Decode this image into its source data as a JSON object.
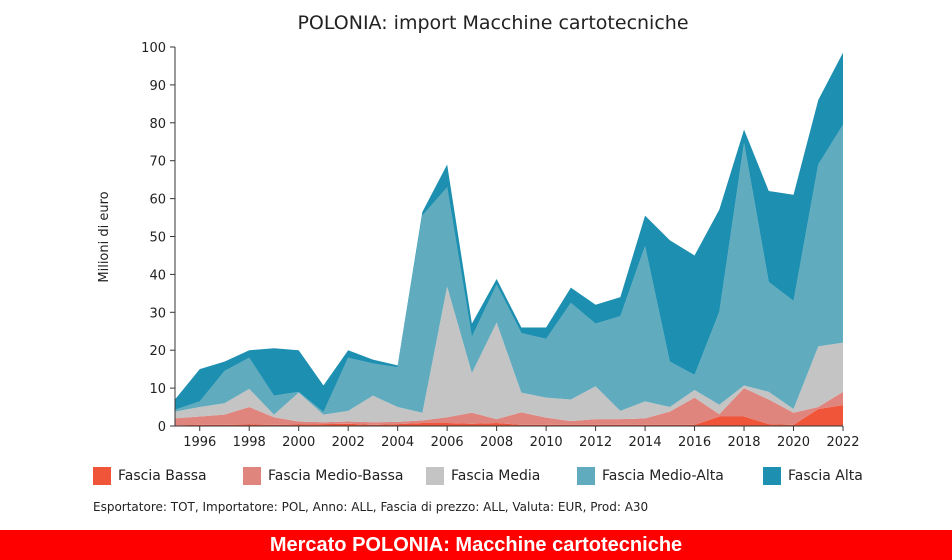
{
  "chart_data": {
    "type": "area",
    "stacked": true,
    "title": "POLONIA: import Macchine cartotecniche",
    "ylabel": "Milioni di euro",
    "xlabel": "",
    "ylim": [
      0,
      100
    ],
    "yticks": [
      0,
      10,
      20,
      30,
      40,
      50,
      60,
      70,
      80,
      90,
      100
    ],
    "xlim": [
      1995,
      2022
    ],
    "xticks": [
      1996,
      1998,
      2000,
      2002,
      2004,
      2006,
      2008,
      2010,
      2012,
      2014,
      2016,
      2018,
      2020,
      2022
    ],
    "x": [
      1995,
      1996,
      1997,
      1998,
      1999,
      2000,
      2001,
      2002,
      2003,
      2004,
      2005,
      2006,
      2007,
      2008,
      2009,
      2010,
      2011,
      2012,
      2013,
      2014,
      2015,
      2016,
      2017,
      2018,
      2019,
      2020,
      2021,
      2022
    ],
    "series": [
      {
        "name": "Fascia Bassa",
        "color": "#f0553a",
        "values": [
          0.2,
          0.3,
          0.3,
          0.4,
          0.3,
          0.4,
          0.5,
          0.6,
          0.3,
          0.5,
          0.8,
          0.8,
          0.6,
          0.8,
          0.3,
          0.3,
          0.3,
          0.3,
          0.3,
          0.3,
          0.3,
          0.3,
          2.5,
          2.5,
          0.5,
          0.3,
          4.5,
          5.5
        ]
      },
      {
        "name": "Fascia Medio-Bassa",
        "color": "#e0857e",
        "values": [
          1.8,
          2.2,
          2.7,
          4.6,
          2.0,
          0.8,
          0.5,
          0.6,
          0.7,
          0.6,
          0.7,
          1.5,
          2.9,
          1.0,
          3.3,
          1.9,
          1.0,
          1.5,
          1.5,
          1.7,
          3.5,
          7.2,
          0.6,
          7.5,
          6.5,
          3.2,
          0.5,
          3.5
        ]
      },
      {
        "name": "Fascia Media",
        "color": "#c4c4c4",
        "values": [
          1.8,
          2.5,
          3.0,
          4.8,
          0.7,
          7.6,
          2.0,
          2.8,
          7.0,
          3.9,
          2.0,
          34.5,
          10.5,
          25.5,
          5.2,
          5.3,
          5.7,
          8.7,
          2.2,
          4.5,
          1.2,
          2.0,
          2.5,
          0.7,
          2.0,
          1.0,
          16.0,
          13.0
        ]
      },
      {
        "name": "Fascia Medio-Alta",
        "color": "#61abbe",
        "values": [
          0.5,
          1.5,
          8.5,
          8.2,
          5.0,
          0.2,
          0.7,
          14.0,
          8.5,
          10.5,
          52.0,
          26.2,
          9.5,
          10.0,
          15.7,
          15.5,
          25.5,
          16.5,
          25.0,
          41.0,
          12.0,
          4.0,
          24.5,
          64.0,
          29.0,
          28.5,
          48.0,
          57.5
        ]
      },
      {
        "name": "Fascia Alta",
        "color": "#1d8fb0",
        "values": [
          2.7,
          8.5,
          2.5,
          2.0,
          12.5,
          11.0,
          7.0,
          2.0,
          1.0,
          0.5,
          1.0,
          6.0,
          3.5,
          1.5,
          1.5,
          3.0,
          4.0,
          5.0,
          5.0,
          8.0,
          32.0,
          31.5,
          27.0,
          3.5,
          24.0,
          28.0,
          17.0,
          19.0
        ]
      }
    ]
  },
  "footnote": "Esportatore: TOT, Importatore: POL, Anno: ALL, Fascia di prezzo: ALL, Valuta: EUR, Prod: A30",
  "banner": "Mercato POLONIA: Macchine cartotecniche"
}
